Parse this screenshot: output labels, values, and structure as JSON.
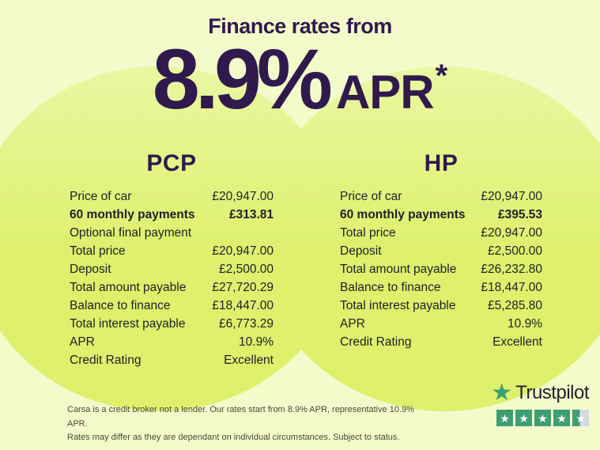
{
  "header": {
    "title": "Finance rates from",
    "rate_value": "8.9%",
    "rate_unit": "APR",
    "rate_footnote_symbol": "*"
  },
  "pcp": {
    "title": "PCP",
    "rows": [
      {
        "label": "Price of car",
        "value": "£20,947.00"
      },
      {
        "label": "60 monthly payments",
        "value": "£313.81"
      },
      {
        "label": "Optional final payment",
        "value": ""
      },
      {
        "label": "Total price",
        "value": "£20,947.00"
      },
      {
        "label": "Deposit",
        "value": "£2,500.00"
      },
      {
        "label": "Total amount payable",
        "value": "£27,720.29"
      },
      {
        "label": "Balance to finance",
        "value": "£18,447.00"
      },
      {
        "label": "Total interest payable",
        "value": "£6,773.29"
      },
      {
        "label": "APR",
        "value": "10.9%"
      },
      {
        "label": "Credit Rating",
        "value": "Excellent"
      }
    ]
  },
  "hp": {
    "title": "HP",
    "rows": [
      {
        "label": "Price of car",
        "value": "£20,947.00"
      },
      {
        "label": "60 monthly payments",
        "value": "£395.53"
      },
      {
        "label": "Total price",
        "value": "£20,947.00"
      },
      {
        "label": "Deposit",
        "value": "£2,500.00"
      },
      {
        "label": "Total amount payable",
        "value": "£26,232.80"
      },
      {
        "label": "Balance to finance",
        "value": "£18,447.00"
      },
      {
        "label": "Total interest payable",
        "value": "£5,285.80"
      },
      {
        "label": "APR",
        "value": "10.9%"
      },
      {
        "label": "Credit Rating",
        "value": "Excellent"
      }
    ]
  },
  "disclaimer": {
    "line1": "Carsa is a credit broker not a lender. Our rates start from 8.9% APR, representative 10.9% APR.",
    "line2": "Rates may differ as they are dependant on individual circumstances. Subject to status."
  },
  "trustpilot": {
    "brand": "Trustpilot",
    "star_glyph": "★",
    "rating_full_stars": 4,
    "rating_half_stars": 1
  },
  "colors": {
    "background": "#f3fbca",
    "blob_top": "#e9f7a2",
    "blob_bottom": "#def06c",
    "accent_purple": "#301a4d",
    "text_dark": "#1f1f26",
    "trustpilot_green": "#3f9e74",
    "half_star_gray": "#d5d8e0"
  }
}
